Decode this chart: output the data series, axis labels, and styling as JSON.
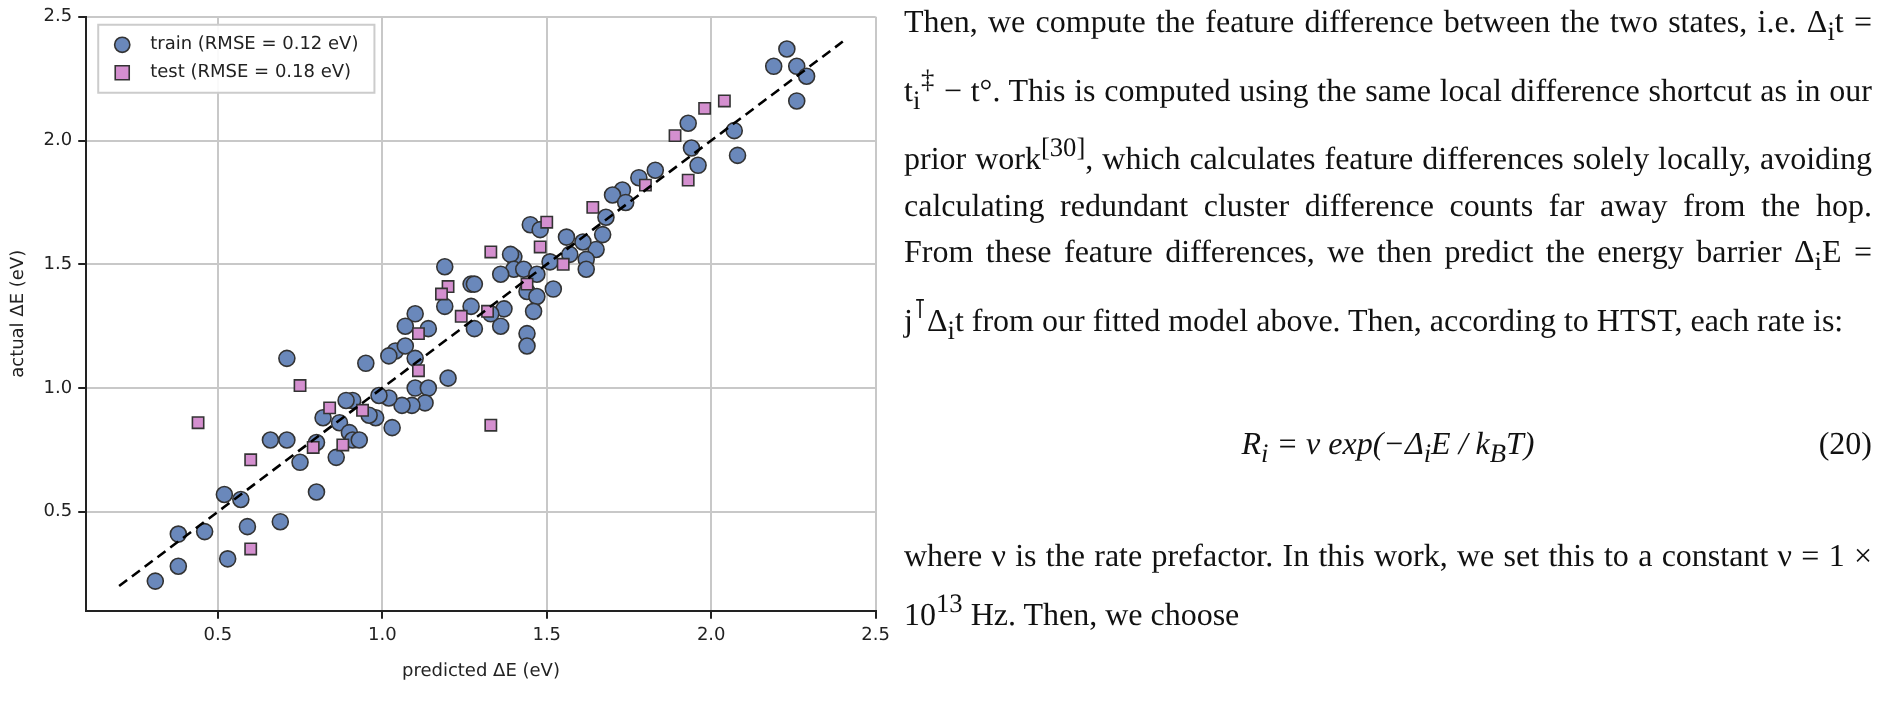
{
  "chart_data": {
    "type": "scatter",
    "xlabel": "predicted ΔE (eV)",
    "ylabel": "actual ΔE (eV)",
    "xlim": [
      0.1,
      2.5
    ],
    "ylim": [
      0.1,
      2.5
    ],
    "xticks": [
      0.5,
      {
        "value": 1,
        "label": "1.0"
      },
      1.5,
      {
        "value": 2,
        "label": "2.0"
      },
      2.5
    ],
    "yticks": [
      0.5,
      {
        "value": 1,
        "label": "1.0"
      },
      1.5,
      {
        "value": 2,
        "label": "2.0"
      },
      2.5
    ],
    "grid": true,
    "legend": "top left",
    "series": [
      {
        "name": "train (RMSE = 0.12 eV)",
        "color": "#6a88bb",
        "marker": "circle",
        "x": [
          2.23,
          2.19,
          2.26,
          2.29,
          2.26,
          1.93,
          1.94,
          1.96,
          2.07,
          2.08,
          1.83,
          1.78,
          1.73,
          1.7,
          1.74,
          1.68,
          1.67,
          1.65,
          1.62,
          1.62,
          1.61,
          1.56,
          1.57,
          1.51,
          1.52,
          1.45,
          1.48,
          1.4,
          1.39,
          1.4,
          1.43,
          1.47,
          1.36,
          1.44,
          1.47,
          1.46,
          1.44,
          1.44,
          1.37,
          1.36,
          1.33,
          1.27,
          1.28,
          1.27,
          1.28,
          1.19,
          1.19,
          1.14,
          1.1,
          1.07,
          1.04,
          1.07,
          1.02,
          1.1,
          0.95,
          0.71,
          1.2,
          1.1,
          1.14,
          1.13,
          1.09,
          1.06,
          1.02,
          0.99,
          1.03,
          0.98,
          0.96,
          0.91,
          0.89,
          0.82,
          0.87,
          0.9,
          0.91,
          0.93,
          0.86,
          0.8,
          0.71,
          0.66,
          0.75,
          0.8,
          0.57,
          0.52,
          0.69,
          0.59,
          0.46,
          0.38,
          0.38,
          0.53,
          0.31
        ],
        "values": [
          2.37,
          2.3,
          2.3,
          2.26,
          2.16,
          2.07,
          1.97,
          1.9,
          2.04,
          1.94,
          1.88,
          1.85,
          1.8,
          1.78,
          1.75,
          1.69,
          1.62,
          1.56,
          1.52,
          1.48,
          1.59,
          1.61,
          1.54,
          1.51,
          1.4,
          1.66,
          1.64,
          1.53,
          1.54,
          1.48,
          1.48,
          1.46,
          1.46,
          1.39,
          1.37,
          1.31,
          1.22,
          1.17,
          1.32,
          1.25,
          1.3,
          1.42,
          1.42,
          1.33,
          1.24,
          1.33,
          1.49,
          1.24,
          1.3,
          1.25,
          1.15,
          1.17,
          1.13,
          1.12,
          1.1,
          1.12,
          1.04,
          1.0,
          1.0,
          0.94,
          0.93,
          0.93,
          0.96,
          0.97,
          0.84,
          0.88,
          0.89,
          0.95,
          0.95,
          0.88,
          0.86,
          0.82,
          0.79,
          0.79,
          0.72,
          0.78,
          0.79,
          0.79,
          0.7,
          0.58,
          0.55,
          0.57,
          0.46,
          0.44,
          0.42,
          0.41,
          0.28,
          0.31,
          0.22
        ]
      },
      {
        "name": "test (RMSE = 0.18 eV)",
        "color": "#d48fcf",
        "marker": "square",
        "x": [
          2.04,
          1.98,
          1.89,
          1.93,
          1.8,
          1.64,
          1.5,
          1.48,
          1.55,
          1.33,
          1.44,
          1.2,
          1.18,
          1.32,
          1.24,
          1.11,
          1.11,
          0.75,
          0.44,
          0.84,
          0.94,
          0.6,
          0.79,
          0.88,
          1.33,
          0.6
        ],
        "values": [
          2.16,
          2.13,
          2.02,
          1.84,
          1.82,
          1.73,
          1.67,
          1.57,
          1.5,
          1.55,
          1.42,
          1.41,
          1.38,
          1.31,
          1.29,
          1.22,
          1.07,
          1.01,
          0.86,
          0.92,
          0.91,
          0.71,
          0.76,
          0.77,
          0.85,
          0.35
        ]
      },
      {
        "type": "line",
        "color": "#000000",
        "marker": "none",
        "line_style": "dashed",
        "x": [
          0.2,
          2.4
        ],
        "values": [
          0.2,
          2.4
        ]
      }
    ],
    "annotations": [
      "Then, we compute the feature difference between the two states, i.e. Δ$_{i}$t = t$_{i}$$^{‡}$ − t°. This is computed using the same local difference shortcut as in our prior work$^{[30]}$, which calculates feature differences solely locally, avoiding calculating redundant cluster difference counts far away from the hop. From these feature differences, we then predict the energy barrier Δ$_{i}$E = j$^{⊺}$Δ$_{i}$t from our fitted model above. Then, according to HTST, each rate is:",
      "R$_{i}$ = ν exp(−Δ$_{i}$E / k$_{B}$T)",
      "(20)",
      "where ν is the rate prefactor. In this work, we set this to a constant ν = 1 × 10$^{13}$ Hz. Then, we choose"
    ]
  }
}
